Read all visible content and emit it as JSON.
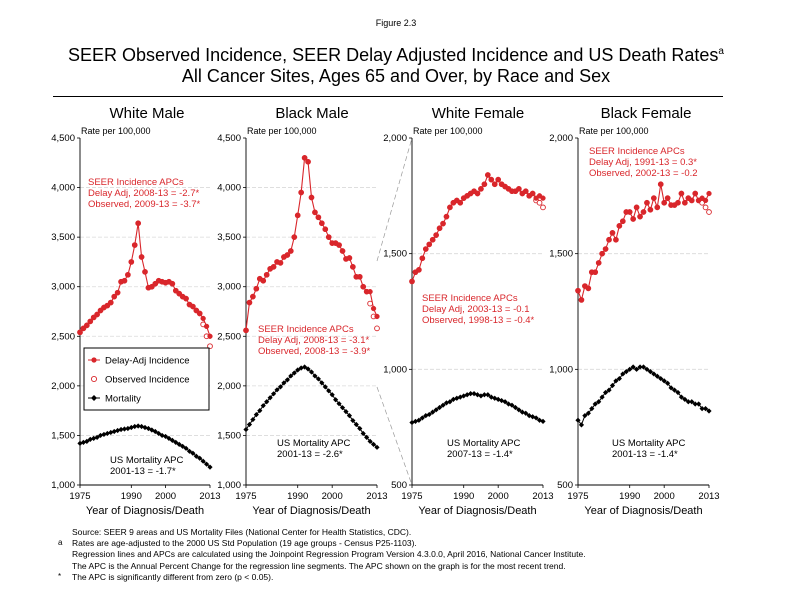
{
  "figure_label": "Figure 2.3",
  "title_line1": "SEER Observed Incidence, SEER Delay Adjusted Incidence and US Death Rates",
  "title_superscript": "a",
  "title_line2": "All Cancer Sites, Ages 65 and Over, by Race and Sex",
  "legend": {
    "items": [
      {
        "label": "Delay-Adj Incidence",
        "marker": "filled-circle-with-line"
      },
      {
        "label": "Observed Incidence",
        "marker": "open-circle"
      },
      {
        "label": "Mortality",
        "marker": "diamond-with-line"
      }
    ]
  },
  "footnotes": [
    {
      "mark": "",
      "text": "Source: SEER 9 areas and US Mortality Files (National Center for Health Statistics, CDC)."
    },
    {
      "mark": "a",
      "text": "Rates are age-adjusted to the 2000 US Std Population (19 age groups - Census P25-1103)."
    },
    {
      "mark": "",
      "text": "Regression lines and APCs are calculated using the Joinpoint Regression Program Version 4.3.0.0, April 2016, National Cancer Institute."
    },
    {
      "mark": "",
      "text": "The APC is the Annual Percent Change for the regression line segments. The APC shown on the graph is for the most recent trend."
    },
    {
      "mark": "*",
      "text": "The APC is significantly different from zero (p < 0.05)."
    }
  ],
  "colors": {
    "incidence": "#d9262b",
    "mortality": "#000000",
    "grid": "#d9d9d9"
  },
  "chart_data": [
    {
      "type": "line",
      "title": "White Male",
      "ylabel": "Rate per 100,000",
      "xlabel": "Year of Diagnosis/Death",
      "ylim": [
        1000,
        4500
      ],
      "y_ticks": [
        "1,000",
        "1,500",
        "2,000",
        "2,500",
        "3,000",
        "3,500",
        "4,000",
        "4,500"
      ],
      "x_ticks": [
        "1975",
        "1990",
        "2000",
        "2013"
      ],
      "x": [
        1975,
        1976,
        1977,
        1978,
        1979,
        1980,
        1981,
        1982,
        1983,
        1984,
        1985,
        1986,
        1987,
        1988,
        1989,
        1990,
        1991,
        1992,
        1993,
        1994,
        1995,
        1996,
        1997,
        1998,
        1999,
        2000,
        2001,
        2002,
        2003,
        2004,
        2005,
        2006,
        2007,
        2008,
        2009,
        2010,
        2011,
        2012,
        2013
      ],
      "series": [
        {
          "name": "Delay-Adj Incidence",
          "values": [
            2540,
            2580,
            2610,
            2650,
            2690,
            2720,
            2760,
            2790,
            2810,
            2840,
            2900,
            2940,
            3050,
            3060,
            3120,
            3250,
            3420,
            3640,
            3300,
            3150,
            2990,
            3000,
            3030,
            3060,
            3050,
            3040,
            3050,
            3030,
            2960,
            2930,
            2900,
            2880,
            2820,
            2800,
            2760,
            2730,
            2680,
            2600,
            2500
          ]
        },
        {
          "name": "Observed Incidence",
          "values": [
            2540,
            2580,
            2610,
            2650,
            2690,
            2720,
            2760,
            2790,
            2810,
            2840,
            2900,
            2940,
            3050,
            3060,
            3120,
            3250,
            3420,
            3640,
            3300,
            3150,
            2990,
            3000,
            3030,
            3060,
            3050,
            3040,
            3050,
            3030,
            2960,
            2930,
            2900,
            2880,
            2820,
            2800,
            2760,
            2730,
            2620,
            2500,
            2400
          ]
        },
        {
          "name": "Mortality",
          "values": [
            1420,
            1430,
            1440,
            1460,
            1470,
            1480,
            1500,
            1510,
            1520,
            1530,
            1540,
            1550,
            1560,
            1565,
            1570,
            1580,
            1590,
            1595,
            1590,
            1580,
            1570,
            1555,
            1540,
            1520,
            1500,
            1490,
            1470,
            1450,
            1430,
            1410,
            1390,
            1370,
            1340,
            1320,
            1290,
            1270,
            1240,
            1210,
            1180
          ]
        }
      ],
      "annotations": [
        {
          "lines": [
            "SEER Incidence APCs",
            "Delay Adj, 2008-13 = -2.7*",
            "Observed, 2009-13 = -3.7*"
          ],
          "color": "incidence"
        },
        {
          "lines": [
            "US Mortality APC",
            "2001-13 = -1.7*"
          ],
          "color": "mortality"
        }
      ]
    },
    {
      "type": "line",
      "title": "Black Male",
      "ylabel": "Rate per 100,000",
      "xlabel": "Year of Diagnosis/Death",
      "ylim": [
        1000,
        4500
      ],
      "y_ticks": [
        "1,000",
        "1,500",
        "2,000",
        "2,500",
        "3,000",
        "3,500",
        "4,000",
        "4,500"
      ],
      "x_ticks": [
        "1975",
        "1990",
        "2000",
        "2013"
      ],
      "x": [
        1975,
        1976,
        1977,
        1978,
        1979,
        1980,
        1981,
        1982,
        1983,
        1984,
        1985,
        1986,
        1987,
        1988,
        1989,
        1990,
        1991,
        1992,
        1993,
        1994,
        1995,
        1996,
        1997,
        1998,
        1999,
        2000,
        2001,
        2002,
        2003,
        2004,
        2005,
        2006,
        2007,
        2008,
        2009,
        2010,
        2011,
        2012,
        2013
      ],
      "series": [
        {
          "name": "Delay-Adj Incidence",
          "values": [
            2560,
            2840,
            2900,
            2980,
            3080,
            3060,
            3120,
            3180,
            3200,
            3250,
            3240,
            3300,
            3320,
            3360,
            3500,
            3720,
            3950,
            4300,
            4260,
            3900,
            3750,
            3700,
            3640,
            3580,
            3500,
            3440,
            3440,
            3420,
            3360,
            3280,
            3290,
            3200,
            3100,
            3100,
            3000,
            2950,
            2950,
            2780,
            2700
          ]
        },
        {
          "name": "Observed Incidence",
          "values": [
            2560,
            2840,
            2900,
            2980,
            3080,
            3060,
            3120,
            3180,
            3200,
            3250,
            3240,
            3300,
            3320,
            3360,
            3500,
            3720,
            3950,
            4300,
            4260,
            3900,
            3750,
            3700,
            3640,
            3580,
            3500,
            3440,
            3440,
            3420,
            3360,
            3280,
            3290,
            3200,
            3100,
            3100,
            3000,
            2950,
            2830,
            2700,
            2580
          ]
        },
        {
          "name": "Mortality",
          "values": [
            1560,
            1610,
            1660,
            1710,
            1750,
            1800,
            1840,
            1880,
            1920,
            1960,
            1990,
            2030,
            2060,
            2100,
            2130,
            2160,
            2180,
            2190,
            2170,
            2140,
            2100,
            2070,
            2030,
            1990,
            1950,
            1910,
            1860,
            1820,
            1780,
            1740,
            1700,
            1650,
            1610,
            1570,
            1520,
            1480,
            1440,
            1410,
            1380
          ]
        }
      ],
      "annotations": [
        {
          "lines": [
            "SEER Incidence APCs",
            "Delay Adj, 2008-13 = -3.1*",
            "Observed, 2008-13 = -3.9*"
          ],
          "color": "incidence"
        },
        {
          "lines": [
            "US Mortality APC",
            "2001-13 = -2.6*"
          ],
          "color": "mortality"
        }
      ]
    },
    {
      "type": "line",
      "title": "White Female",
      "ylabel": "Rate per 100,000",
      "xlabel": "Year of Diagnosis/Death",
      "ylim": [
        500,
        2000
      ],
      "y_ticks": [
        "500",
        "1,000",
        "1,500",
        "2,000"
      ],
      "x_ticks": [
        "1975",
        "1990",
        "2000",
        "2013"
      ],
      "x": [
        1975,
        1976,
        1977,
        1978,
        1979,
        1980,
        1981,
        1982,
        1983,
        1984,
        1985,
        1986,
        1987,
        1988,
        1989,
        1990,
        1991,
        1992,
        1993,
        1994,
        1995,
        1996,
        1997,
        1998,
        1999,
        2000,
        2001,
        2002,
        2003,
        2004,
        2005,
        2006,
        2007,
        2008,
        2009,
        2010,
        2011,
        2012,
        2013
      ],
      "series": [
        {
          "name": "Delay-Adj Incidence",
          "values": [
            1380,
            1420,
            1430,
            1480,
            1520,
            1540,
            1560,
            1580,
            1610,
            1630,
            1660,
            1700,
            1720,
            1730,
            1720,
            1740,
            1750,
            1760,
            1770,
            1760,
            1780,
            1800,
            1840,
            1820,
            1800,
            1820,
            1800,
            1790,
            1780,
            1770,
            1770,
            1780,
            1760,
            1770,
            1750,
            1760,
            1740,
            1750,
            1740
          ]
        },
        {
          "name": "Observed Incidence",
          "values": [
            1380,
            1420,
            1430,
            1480,
            1520,
            1540,
            1560,
            1580,
            1610,
            1630,
            1660,
            1700,
            1720,
            1730,
            1720,
            1740,
            1750,
            1760,
            1770,
            1760,
            1780,
            1800,
            1840,
            1820,
            1800,
            1820,
            1800,
            1790,
            1780,
            1770,
            1770,
            1780,
            1760,
            1770,
            1750,
            1760,
            1730,
            1720,
            1700
          ]
        },
        {
          "name": "Mortality",
          "values": [
            770,
            775,
            780,
            790,
            800,
            805,
            815,
            825,
            835,
            845,
            855,
            860,
            870,
            875,
            880,
            885,
            890,
            895,
            895,
            890,
            885,
            890,
            890,
            880,
            875,
            870,
            865,
            860,
            850,
            845,
            835,
            825,
            815,
            810,
            800,
            795,
            790,
            780,
            775
          ]
        }
      ],
      "annotations": [
        {
          "lines": [
            "SEER Incidence APCs",
            "Delay Adj, 2003-13 = -0.1",
            "Observed, 1998-13 = -0.4*"
          ],
          "color": "incidence"
        },
        {
          "lines": [
            "US Mortality APC",
            "2007-13 = -1.4*"
          ],
          "color": "mortality"
        }
      ]
    },
    {
      "type": "line",
      "title": "Black Female",
      "ylabel": "Rate per 100,000",
      "xlabel": "Year of Diagnosis/Death",
      "ylim": [
        500,
        2000
      ],
      "y_ticks": [
        "500",
        "1,000",
        "1,500",
        "2,000"
      ],
      "x_ticks": [
        "1975",
        "1990",
        "2000",
        "2013"
      ],
      "x": [
        1975,
        1976,
        1977,
        1978,
        1979,
        1980,
        1981,
        1982,
        1983,
        1984,
        1985,
        1986,
        1987,
        1988,
        1989,
        1990,
        1991,
        1992,
        1993,
        1994,
        1995,
        1996,
        1997,
        1998,
        1999,
        2000,
        2001,
        2002,
        2003,
        2004,
        2005,
        2006,
        2007,
        2008,
        2009,
        2010,
        2011,
        2012,
        2013
      ],
      "series": [
        {
          "name": "Delay-Adj Incidence",
          "values": [
            1340,
            1300,
            1360,
            1350,
            1420,
            1420,
            1460,
            1500,
            1520,
            1560,
            1590,
            1560,
            1620,
            1640,
            1680,
            1680,
            1650,
            1700,
            1660,
            1680,
            1720,
            1690,
            1740,
            1700,
            1800,
            1720,
            1740,
            1710,
            1710,
            1720,
            1760,
            1720,
            1740,
            1730,
            1760,
            1730,
            1740,
            1730,
            1760
          ]
        },
        {
          "name": "Observed Incidence",
          "values": [
            1340,
            1300,
            1360,
            1350,
            1420,
            1420,
            1460,
            1500,
            1520,
            1560,
            1590,
            1560,
            1620,
            1640,
            1680,
            1680,
            1650,
            1700,
            1660,
            1680,
            1720,
            1690,
            1740,
            1700,
            1800,
            1720,
            1740,
            1710,
            1710,
            1720,
            1760,
            1720,
            1740,
            1730,
            1760,
            1730,
            1720,
            1700,
            1680
          ]
        },
        {
          "name": "Mortality",
          "values": [
            780,
            760,
            800,
            810,
            830,
            850,
            860,
            880,
            900,
            910,
            930,
            950,
            960,
            980,
            990,
            1000,
            1010,
            1000,
            1010,
            1010,
            1000,
            990,
            980,
            970,
            960,
            950,
            940,
            920,
            910,
            900,
            880,
            870,
            860,
            860,
            850,
            850,
            830,
            830,
            820
          ]
        }
      ],
      "annotations": [
        {
          "lines": [
            "SEER Incidence APCs",
            "Delay Adj, 1991-13 = 0.3*",
            "Observed, 2002-13 = -0.2"
          ],
          "color": "incidence"
        },
        {
          "lines": [
            "US Mortality APC",
            "2001-13 = -1.4*"
          ],
          "color": "mortality"
        }
      ]
    }
  ]
}
